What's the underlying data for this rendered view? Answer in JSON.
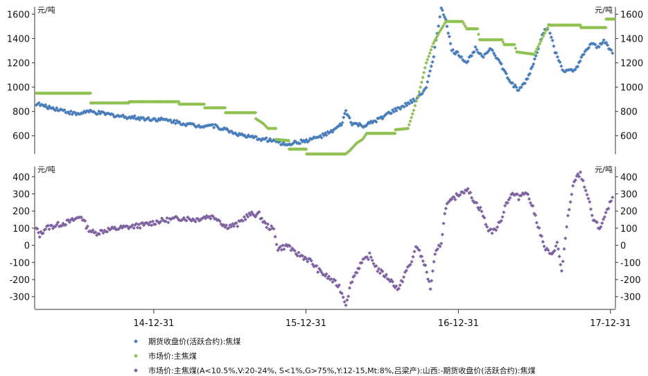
{
  "chart_data": [
    {
      "type": "scatter",
      "panel": "top",
      "unit_left": "元/吨",
      "unit_right": "元/吨",
      "ylim": [
        450,
        1660
      ],
      "yticks": [
        600,
        800,
        1000,
        1200,
        1400,
        1600
      ],
      "series": [
        {
          "name": "期货收盘价(活跃合约):焦煤",
          "color": "#4a7ebb",
          "marker": "diamond",
          "points": [
            [
              "2014-03-21",
              870
            ],
            [
              "2014-04-15",
              840
            ],
            [
              "2014-05-15",
              820
            ],
            [
              "2014-06-15",
              790
            ],
            [
              "2014-07-01",
              775
            ],
            [
              "2014-07-20",
              800
            ],
            [
              "2014-08-15",
              790
            ],
            [
              "2014-09-15",
              775
            ],
            [
              "2014-10-15",
              760
            ],
            [
              "2014-11-15",
              750
            ],
            [
              "2014-12-15",
              740
            ],
            [
              "2015-01-15",
              735
            ],
            [
              "2015-02-15",
              720
            ],
            [
              "2015-03-15",
              700
            ],
            [
              "2015-04-15",
              680
            ],
            [
              "2015-05-15",
              690
            ],
            [
              "2015-06-15",
              660
            ],
            [
              "2015-07-15",
              620
            ],
            [
              "2015-08-15",
              590
            ],
            [
              "2015-09-15",
              575
            ],
            [
              "2015-10-15",
              560
            ],
            [
              "2015-11-10",
              530
            ],
            [
              "2015-12-01",
              540
            ],
            [
              "2016-01-01",
              560
            ],
            [
              "2016-02-01",
              590
            ],
            [
              "2016-03-01",
              630
            ],
            [
              "2016-03-25",
              690
            ],
            [
              "2016-04-05",
              800
            ],
            [
              "2016-04-20",
              700
            ],
            [
              "2016-05-20",
              680
            ],
            [
              "2016-06-20",
              730
            ],
            [
              "2016-07-20",
              790
            ],
            [
              "2016-08-20",
              840
            ],
            [
              "2016-09-20",
              900
            ],
            [
              "2016-10-15",
              1000
            ],
            [
              "2016-10-30",
              1200
            ],
            [
              "2016-11-10",
              1450
            ],
            [
              "2016-11-20",
              1640
            ],
            [
              "2016-12-01",
              1560
            ],
            [
              "2016-12-15",
              1300
            ],
            [
              "2017-01-01",
              1270
            ],
            [
              "2017-01-20",
              1200
            ],
            [
              "2017-02-10",
              1320
            ],
            [
              "2017-03-01",
              1260
            ],
            [
              "2017-03-20",
              1320
            ],
            [
              "2017-04-10",
              1200
            ],
            [
              "2017-05-01",
              1060
            ],
            [
              "2017-05-25",
              970
            ],
            [
              "2017-06-15",
              1070
            ],
            [
              "2017-07-05",
              1250
            ],
            [
              "2017-07-20",
              1440
            ],
            [
              "2017-08-05",
              1500
            ],
            [
              "2017-08-20",
              1290
            ],
            [
              "2017-09-10",
              1130
            ],
            [
              "2017-10-05",
              1130
            ],
            [
              "2017-10-25",
              1250
            ],
            [
              "2017-11-15",
              1360
            ],
            [
              "2017-12-01",
              1320
            ],
            [
              "2017-12-15",
              1390
            ],
            [
              "2018-01-05",
              1280
            ]
          ]
        },
        {
          "name": "市场价:主焦煤",
          "color": "#8ec151",
          "marker": "diamond",
          "points": [
            [
              "2014-03-21",
              950
            ],
            [
              "2014-08-01",
              950
            ],
            [
              "2014-08-02",
              870
            ],
            [
              "2014-11-01",
              870
            ],
            [
              "2014-11-02",
              880
            ],
            [
              "2015-03-01",
              880
            ],
            [
              "2015-03-02",
              860
            ],
            [
              "2015-05-01",
              860
            ],
            [
              "2015-05-02",
              830
            ],
            [
              "2015-06-20",
              830
            ],
            [
              "2015-06-21",
              790
            ],
            [
              "2015-09-01",
              790
            ],
            [
              "2015-09-02",
              740
            ],
            [
              "2015-09-20",
              700
            ],
            [
              "2015-10-01",
              660
            ],
            [
              "2015-10-20",
              660
            ],
            [
              "2015-10-21",
              570
            ],
            [
              "2015-11-20",
              560
            ],
            [
              "2015-11-21",
              490
            ],
            [
              "2016-01-01",
              490
            ],
            [
              "2016-01-02",
              440
            ],
            [
              "2016-04-01",
              440
            ],
            [
              "2016-04-15",
              480
            ],
            [
              "2016-05-01",
              540
            ],
            [
              "2016-05-15",
              570
            ],
            [
              "2016-05-25",
              620
            ],
            [
              "2016-08-01",
              620
            ],
            [
              "2016-08-02",
              650
            ],
            [
              "2016-09-01",
              660
            ],
            [
              "2016-09-15",
              810
            ],
            [
              "2016-10-01",
              1000
            ],
            [
              "2016-10-15",
              1200
            ],
            [
              "2016-11-01",
              1360
            ],
            [
              "2016-11-15",
              1450
            ],
            [
              "2016-12-01",
              1540
            ],
            [
              "2017-01-10",
              1540
            ],
            [
              "2017-01-20",
              1480
            ],
            [
              "2017-02-15",
              1480
            ],
            [
              "2017-02-20",
              1390
            ],
            [
              "2017-04-15",
              1390
            ],
            [
              "2017-04-20",
              1350
            ],
            [
              "2017-05-15",
              1350
            ],
            [
              "2017-05-20",
              1290
            ],
            [
              "2017-07-01",
              1270
            ],
            [
              "2017-07-20",
              1400
            ],
            [
              "2017-08-05",
              1510
            ],
            [
              "2017-10-20",
              1510
            ],
            [
              "2017-10-21",
              1490
            ],
            [
              "2017-12-20",
              1490
            ],
            [
              "2017-12-21",
              1560
            ],
            [
              "2018-01-10",
              1560
            ]
          ]
        }
      ]
    },
    {
      "type": "scatter",
      "panel": "bottom",
      "unit_left": "元/吨",
      "unit_right": "元/吨",
      "ylim": [
        -370,
        460
      ],
      "yticks": [
        -300,
        -200,
        -100,
        0,
        100,
        200,
        300,
        400
      ],
      "x_tick_labels": [
        "14-12-31",
        "15-12-31",
        "16-12-31",
        "17-12-31"
      ],
      "x_ticks": [
        "2014-12-31",
        "2015-12-31",
        "2016-12-31",
        "2017-12-31"
      ],
      "x_range": [
        "2014-03-20",
        "2018-01-12"
      ],
      "series": [
        {
          "name": "市场价:主焦煤(A<10.5%,V:20-24%, S<1%,G>75%,Y:12-15,Mt:8%,吕梁产):山西:-期货收盘价(活跃合约):焦煤",
          "color": "#8064a2",
          "marker": "diamond",
          "points": [
            [
              "2014-03-21",
              110
            ],
            [
              "2014-04-01",
              60
            ],
            [
              "2014-04-15",
              100
            ],
            [
              "2014-05-15",
              120
            ],
            [
              "2014-06-15",
              140
            ],
            [
              "2014-07-10",
              170
            ],
            [
              "2014-07-25",
              100
            ],
            [
              "2014-08-10",
              70
            ],
            [
              "2014-09-10",
              90
            ],
            [
              "2014-10-10",
              100
            ],
            [
              "2014-11-10",
              110
            ],
            [
              "2014-12-10",
              120
            ],
            [
              "2015-01-10",
              140
            ],
            [
              "2015-02-10",
              150
            ],
            [
              "2015-03-10",
              160
            ],
            [
              "2015-04-10",
              150
            ],
            [
              "2015-05-10",
              170
            ],
            [
              "2015-06-01",
              160
            ],
            [
              "2015-06-20",
              110
            ],
            [
              "2015-07-20",
              120
            ],
            [
              "2015-08-05",
              160
            ],
            [
              "2015-08-20",
              180
            ],
            [
              "2015-09-10",
              180
            ],
            [
              "2015-09-25",
              120
            ],
            [
              "2015-10-15",
              90
            ],
            [
              "2015-10-25",
              -20
            ],
            [
              "2015-11-20",
              0
            ],
            [
              "2015-12-01",
              -40
            ],
            [
              "2015-12-20",
              -60
            ],
            [
              "2016-01-10",
              -90
            ],
            [
              "2016-02-01",
              -150
            ],
            [
              "2016-03-01",
              -200
            ],
            [
              "2016-03-20",
              -240
            ],
            [
              "2016-04-05",
              -340
            ],
            [
              "2016-04-20",
              -200
            ],
            [
              "2016-05-10",
              -110
            ],
            [
              "2016-06-01",
              -60
            ],
            [
              "2016-06-20",
              -140
            ],
            [
              "2016-07-20",
              -200
            ],
            [
              "2016-08-10",
              -260
            ],
            [
              "2016-08-25",
              -160
            ],
            [
              "2016-09-10",
              -100
            ],
            [
              "2016-09-20",
              0
            ],
            [
              "2016-10-10",
              -100
            ],
            [
              "2016-10-25",
              -250
            ],
            [
              "2016-11-05",
              -60
            ],
            [
              "2016-11-20",
              20
            ],
            [
              "2016-12-01",
              230
            ],
            [
              "2016-12-15",
              260
            ],
            [
              "2017-01-01",
              300
            ],
            [
              "2017-01-20",
              330
            ],
            [
              "2017-02-10",
              250
            ],
            [
              "2017-02-25",
              200
            ],
            [
              "2017-03-10",
              100
            ],
            [
              "2017-03-25",
              80
            ],
            [
              "2017-04-10",
              130
            ],
            [
              "2017-04-25",
              250
            ],
            [
              "2017-05-10",
              300
            ],
            [
              "2017-05-25",
              280
            ],
            [
              "2017-06-10",
              320
            ],
            [
              "2017-06-25",
              240
            ],
            [
              "2017-07-10",
              120
            ],
            [
              "2017-07-25",
              -10
            ],
            [
              "2017-08-10",
              -60
            ],
            [
              "2017-08-25",
              10
            ],
            [
              "2017-09-05",
              -150
            ],
            [
              "2017-09-20",
              160
            ],
            [
              "2017-10-05",
              380
            ],
            [
              "2017-10-20",
              420
            ],
            [
              "2017-11-05",
              300
            ],
            [
              "2017-11-20",
              150
            ],
            [
              "2017-12-05",
              100
            ],
            [
              "2017-12-20",
              180
            ],
            [
              "2018-01-05",
              280
            ]
          ]
        }
      ]
    }
  ]
}
